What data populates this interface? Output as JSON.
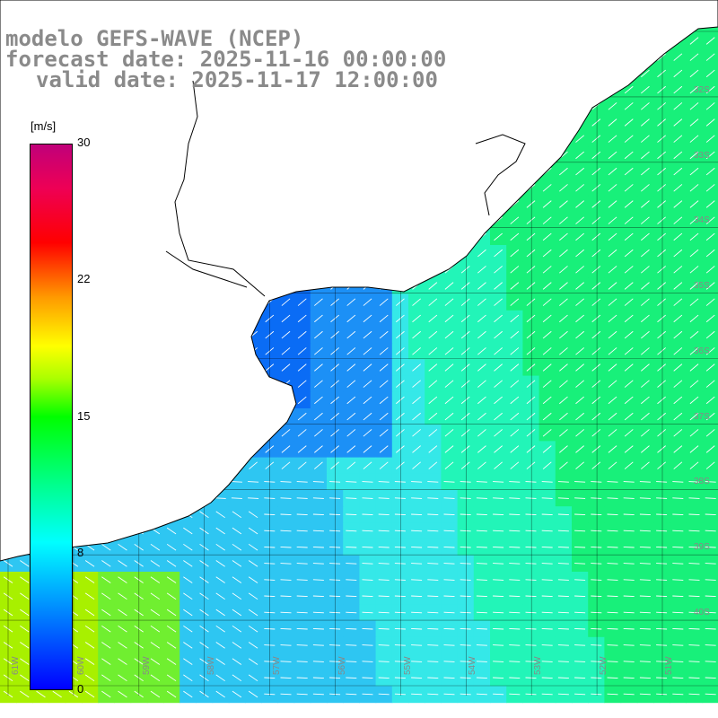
{
  "title": {
    "line1": "modelo GEFS-WAVE (NCEP)",
    "line2": "forecast date: 2025-11-16 00:00:00",
    "line3": "valid date: 2025-11-17 12:00:00"
  },
  "colorbar": {
    "unit": "[m/s]",
    "ticks": [
      "30",
      "22",
      "15",
      "8",
      "0"
    ],
    "colors": [
      "#0000ff",
      "#00aaff",
      "#00ffff",
      "#00ff88",
      "#00ff00",
      "#aaff00",
      "#ffff00",
      "#ff9900",
      "#ff0000",
      "#ee0055",
      "#c0007a"
    ]
  },
  "lat_labels": [
    "32S",
    "33S",
    "34S",
    "35S",
    "36S",
    "37S",
    "38S",
    "39S",
    "40S"
  ],
  "lon_labels": [
    "61W",
    "60W",
    "59W",
    "58W",
    "57W",
    "56W",
    "55W",
    "54W",
    "53W",
    "52W",
    "51W"
  ],
  "colors": {
    "grid": "#000000",
    "land": "#ffffff",
    "coast": "#000000",
    "arrow": "#ffffff"
  }
}
